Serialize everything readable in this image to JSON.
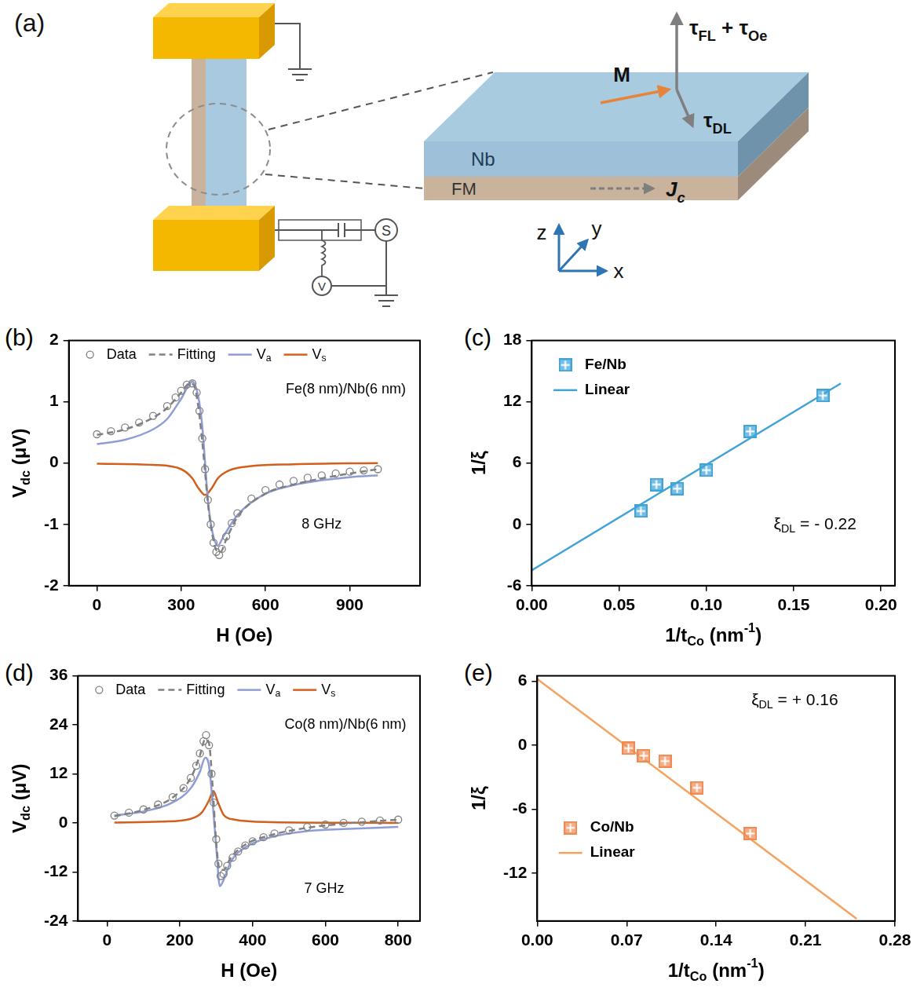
{
  "diagram": {
    "panel": "(a)",
    "labels": {
      "torque_fl_oe": [
        {
          "text": "τ"
        },
        {
          "text": "FL",
          "sub": true
        },
        {
          "text": " + τ"
        },
        {
          "text": "Oe",
          "sub": true
        }
      ],
      "magnetization": "M",
      "torque_dl": [
        {
          "text": "τ"
        },
        {
          "text": "DL",
          "sub": true
        }
      ],
      "top_layer": "Nb",
      "bottom_layer": "FM",
      "current": [
        {
          "text": "J"
        },
        {
          "text": "c",
          "sub": true
        }
      ],
      "axis_z": "z",
      "axis_y": "y",
      "axis_x": "x",
      "source": "S",
      "meter": "V"
    }
  },
  "chart_data": [
    {
      "panel": "(b)",
      "type": "line",
      "x_label": "H (Oe)",
      "y_label": [
        {
          "text": "V"
        },
        {
          "text": "dc",
          "sub": true
        },
        {
          "text": " (μV)"
        }
      ],
      "annotations": [
        "Fe(8 nm)/Nb(6 nm)",
        "8 GHz"
      ],
      "xlim": [
        -100,
        1150
      ],
      "xticks": [
        0,
        300,
        600,
        900
      ],
      "ylim": [
        -2,
        2
      ],
      "yticks": [
        -2,
        -1,
        0,
        1,
        2
      ],
      "grid": false,
      "legend": "top",
      "series": [
        {
          "name": "Data",
          "type": "scatter",
          "marker": "circle",
          "color": "#808080",
          "x": [
            0,
            50,
            100,
            150,
            200,
            250,
            280,
            300,
            320,
            340,
            355,
            365,
            375,
            385,
            395,
            405,
            415,
            425,
            435,
            445,
            460,
            480,
            500,
            550,
            600,
            650,
            700,
            750,
            800,
            850,
            900,
            950,
            1000
          ],
          "values": [
            0.47,
            0.52,
            0.58,
            0.66,
            0.77,
            0.93,
            1.07,
            1.18,
            1.28,
            1.3,
            1.15,
            0.85,
            0.4,
            -0.1,
            -0.6,
            -1.0,
            -1.3,
            -1.45,
            -1.5,
            -1.4,
            -1.2,
            -0.98,
            -0.82,
            -0.58,
            -0.44,
            -0.35,
            -0.29,
            -0.24,
            -0.2,
            -0.17,
            -0.14,
            -0.12,
            -0.1
          ]
        },
        {
          "name": "Fitting",
          "type": "line",
          "line_style": "dashed",
          "color": "#808080",
          "x": [
            0,
            100,
            200,
            250,
            300,
            330,
            345,
            360,
            375,
            385,
            395,
            410,
            425,
            440,
            460,
            500,
            600,
            700,
            800,
            900,
            1000
          ],
          "values": [
            0.46,
            0.55,
            0.74,
            0.9,
            1.15,
            1.3,
            1.27,
            0.95,
            0.35,
            -0.15,
            -0.65,
            -1.15,
            -1.42,
            -1.45,
            -1.25,
            -0.88,
            -0.5,
            -0.35,
            -0.25,
            -0.17,
            -0.1
          ]
        },
        {
          "name": [
            {
              "text": "V"
            },
            {
              "text": "a",
              "sub": true
            }
          ],
          "type": "line",
          "line_style": "solid",
          "color": "#8f9dd6",
          "x": [
            0,
            100,
            200,
            250,
            300,
            340,
            360,
            375,
            385,
            395,
            410,
            430,
            450,
            500,
            600,
            700,
            800,
            900,
            1000
          ],
          "values": [
            0.31,
            0.38,
            0.55,
            0.72,
            1.05,
            1.33,
            1.1,
            0.6,
            0,
            -0.6,
            -1.1,
            -1.35,
            -1.2,
            -0.85,
            -0.5,
            -0.36,
            -0.28,
            -0.23,
            -0.2
          ]
        },
        {
          "name": [
            {
              "text": "V"
            },
            {
              "text": "s",
              "sub": true
            }
          ],
          "type": "line",
          "line_style": "solid",
          "color": "#d2601d",
          "x": [
            0,
            200,
            300,
            340,
            360,
            385,
            410,
            430,
            470,
            550,
            700,
            1000
          ],
          "values": [
            -0.01,
            -0.03,
            -0.1,
            -0.25,
            -0.4,
            -0.52,
            -0.4,
            -0.25,
            -0.12,
            -0.05,
            -0.02,
            0
          ]
        }
      ]
    },
    {
      "panel": "(c)",
      "type": "scatter",
      "x_label": [
        {
          "text": "1/t"
        },
        {
          "text": "Co",
          "sub": true
        },
        {
          "text": " (nm"
        },
        {
          "text": "-1",
          "sup": true
        },
        {
          "text": ")"
        }
      ],
      "y_label": "1/ξ",
      "annotations": [
        [
          {
            "text": "ξ"
          },
          {
            "text": "DL",
            "sub": true
          },
          {
            "text": " = - 0.22"
          }
        ]
      ],
      "xlim": [
        0,
        0.208
      ],
      "xticks": [
        {
          "value": 0,
          "label": "0.00"
        },
        {
          "value": 0.05,
          "label": "0.05"
        },
        {
          "value": 0.1,
          "label": "0.10"
        },
        {
          "value": 0.15,
          "label": "0.15"
        },
        {
          "value": 0.2,
          "label": "0.20"
        }
      ],
      "ylim": [
        -6,
        18
      ],
      "yticks": [
        -6,
        0,
        6,
        12,
        18
      ],
      "grid": false,
      "legend": "upper left",
      "series": [
        {
          "name": "Fe/Nb",
          "type": "scatter",
          "marker": "square",
          "color": "#3fa3d8",
          "x": [
            0.0625,
            0.0714,
            0.0833,
            0.1,
            0.125,
            0.1667
          ],
          "values": [
            1.3,
            3.9,
            3.5,
            5.3,
            9.1,
            12.6
          ]
        },
        {
          "name": "Linear",
          "type": "line",
          "line_style": "solid",
          "color": "#3fa3d8",
          "x": [
            0,
            0.177
          ],
          "values": [
            -4.5,
            13.8
          ]
        }
      ]
    },
    {
      "panel": "(d)",
      "type": "line",
      "x_label": "H (Oe)",
      "y_label": [
        {
          "text": "V"
        },
        {
          "text": "dc",
          "sub": true
        },
        {
          "text": " (μV)"
        }
      ],
      "annotations": [
        "Co(8 nm)/Nb(6 nm)",
        "7 GHz"
      ],
      "xlim": [
        -80,
        860
      ],
      "xticks": [
        0,
        200,
        400,
        600,
        800
      ],
      "ylim": [
        -24,
        36
      ],
      "yticks": [
        -24,
        -12,
        0,
        12,
        24,
        36
      ],
      "grid": false,
      "legend": "top",
      "series": [
        {
          "name": "Data",
          "type": "scatter",
          "marker": "circle",
          "color": "#808080",
          "x": [
            20,
            60,
            100,
            140,
            180,
            210,
            230,
            245,
            255,
            265,
            272,
            280,
            287,
            293,
            300,
            306,
            312,
            320,
            330,
            345,
            360,
            380,
            400,
            430,
            460,
            500,
            550,
            600,
            650,
            700,
            750,
            800
          ],
          "values": [
            1.8,
            2.5,
            3.3,
            4.5,
            6.3,
            8.5,
            11,
            14,
            17,
            20,
            21.5,
            19,
            12,
            5,
            -4,
            -10,
            -13,
            -12.5,
            -10.5,
            -8.5,
            -7,
            -5.5,
            -4.5,
            -3.5,
            -2.6,
            -1.8,
            -1,
            -0.4,
            0,
            0.3,
            0.6,
            0.8
          ]
        },
        {
          "name": "Fitting",
          "type": "line",
          "line_style": "dashed",
          "color": "#808080",
          "x": [
            20,
            100,
            180,
            230,
            255,
            270,
            280,
            290,
            300,
            310,
            320,
            340,
            380,
            450,
            550,
            650,
            800
          ],
          "values": [
            1.6,
            3.2,
            6.2,
            11,
            16.5,
            20.5,
            19.5,
            9,
            -5,
            -11.5,
            -11.5,
            -8.5,
            -5.3,
            -3,
            -1.2,
            -0.2,
            0.8
          ]
        },
        {
          "name": [
            {
              "text": "V"
            },
            {
              "text": "a",
              "sub": true
            }
          ],
          "type": "line",
          "line_style": "solid",
          "color": "#8f9dd6",
          "x": [
            20,
            100,
            180,
            230,
            255,
            270,
            280,
            290,
            300,
            310,
            320,
            340,
            380,
            450,
            550,
            650,
            800
          ],
          "values": [
            1.8,
            2.8,
            5,
            8.5,
            12.5,
            16,
            14,
            5,
            -6,
            -15.5,
            -14,
            -9.5,
            -6,
            -3.5,
            -2,
            -1.5,
            -1
          ]
        },
        {
          "name": [
            {
              "text": "V"
            },
            {
              "text": "s",
              "sub": true
            }
          ],
          "type": "line",
          "line_style": "solid",
          "color": "#d2601d",
          "x": [
            20,
            150,
            230,
            260,
            280,
            292,
            305,
            320,
            350,
            450,
            800
          ],
          "values": [
            0.1,
            0.3,
            1,
            2.5,
            5.5,
            7.8,
            5,
            2,
            0.8,
            0.2,
            0
          ]
        }
      ]
    },
    {
      "panel": "(e)",
      "type": "scatter",
      "x_label": [
        {
          "text": "1/t"
        },
        {
          "text": "Co",
          "sub": true
        },
        {
          "text": " (nm"
        },
        {
          "text": "-1",
          "sup": true
        },
        {
          "text": ")"
        }
      ],
      "y_label": "1/ξ",
      "annotations": [
        [
          {
            "text": "ξ"
          },
          {
            "text": "DL",
            "sub": true
          },
          {
            "text": " = + 0.16"
          }
        ]
      ],
      "xlim": [
        0,
        0.28
      ],
      "xticks": [
        {
          "value": 0,
          "label": "0.00"
        },
        {
          "value": 0.07,
          "label": "0.07"
        },
        {
          "value": 0.14,
          "label": "0.14"
        },
        {
          "value": 0.21,
          "label": "0.21"
        },
        {
          "value": 0.28,
          "label": "0.28"
        }
      ],
      "ylim": [
        -16.5,
        6.5
      ],
      "yticks": [
        -12,
        -6,
        0,
        6
      ],
      "grid": false,
      "legend": "lower left",
      "series": [
        {
          "name": "Co/Nb",
          "type": "scatter",
          "marker": "square",
          "color": "#f08a52",
          "x": [
            0.0714,
            0.0833,
            0.1,
            0.125,
            0.1667
          ],
          "values": [
            -0.3,
            -1,
            -1.5,
            -4,
            -8.3
          ]
        },
        {
          "name": "Linear",
          "type": "line",
          "line_style": "solid",
          "color": "#f4a25e",
          "x": [
            0,
            0.25
          ],
          "values": [
            6.2,
            -16.3
          ]
        }
      ]
    }
  ]
}
